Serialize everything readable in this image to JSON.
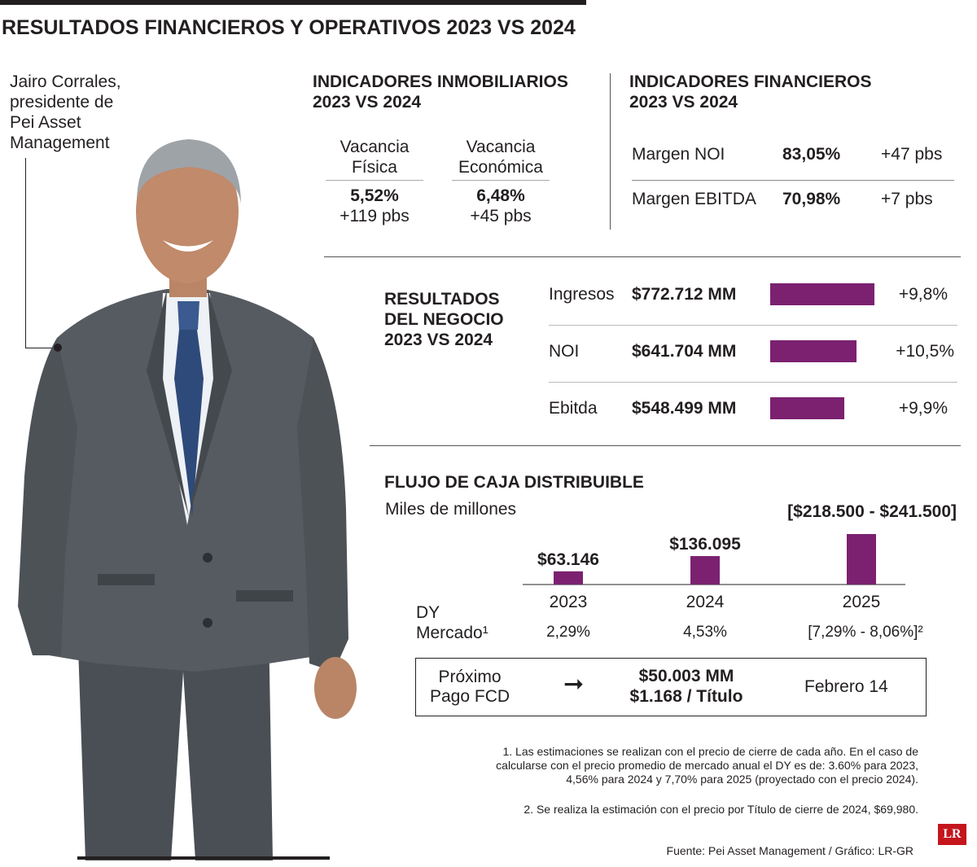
{
  "title": "RESULTADOS FINANCIEROS Y OPERATIVOS 2023 VS 2024",
  "photo": {
    "caption": [
      "Jairo Corrales,",
      "presidente de",
      "Pei Asset",
      "Management"
    ]
  },
  "real_estate": {
    "heading": [
      "INDICADORES INMOBILIARIOS",
      "2023 VS 2024"
    ],
    "items": [
      {
        "label": [
          "Vacancia",
          "Física"
        ],
        "value": "5,52%",
        "change": "+119 pbs"
      },
      {
        "label": [
          "Vacancia",
          "Económica"
        ],
        "value": "6,48%",
        "change": "+45 pbs"
      }
    ]
  },
  "financial": {
    "heading": [
      "INDICADORES FINANCIEROS",
      "2023 VS 2024"
    ],
    "rows": [
      {
        "label": "Margen NOI",
        "value": "83,05%",
        "change": "+47 pbs"
      },
      {
        "label": "Margen EBITDA",
        "value": "70,98%",
        "change": "+7 pbs"
      }
    ]
  },
  "business": {
    "heading": [
      "RESULTADOS",
      "DEL NEGOCIO",
      "2023 VS 2024"
    ],
    "rows": [
      {
        "label": "Ingresos",
        "value": "$772.712 MM",
        "amount": 772712,
        "change": "+9,8%"
      },
      {
        "label": "NOI",
        "value": "$641.704 MM",
        "amount": 641704,
        "change": "+10,5%"
      },
      {
        "label": "Ebitda",
        "value": "$548.499 MM",
        "amount": 548499,
        "change": "+9,9%"
      }
    ]
  },
  "cash_flow": {
    "heading": "FLUJO DE CAJA DISTRIBUIBLE",
    "subheading": "Miles de millones",
    "dy_label": [
      "DY",
      "Mercado¹"
    ]
  },
  "chart_data": {
    "type": "bar",
    "categories": [
      "2023",
      "2024",
      "2025"
    ],
    "values": [
      63146,
      136095,
      241500
    ],
    "value_labels": [
      "$63.146",
      "$136.095",
      "[$218.500 - $241.500]"
    ],
    "dy_values": [
      "2,29%",
      "4,53%",
      "[7,29% - 8,06%]²"
    ],
    "title": "FLUJO DE CAJA DISTRIBUIBLE",
    "ylabel": "Miles de millones",
    "bar_color": "#7b2170"
  },
  "next_payment": {
    "label": [
      "Próximo",
      "Pago FCD"
    ],
    "arrow": "➞",
    "amounts": [
      "$50.003 MM",
      "$1.168 / Título"
    ],
    "date": "Febrero 14"
  },
  "notes": {
    "note1": [
      "1. Las estimaciones se realizan con el precio de cierre de cada año. En el caso de",
      "calcularse con el precio promedio de mercado anual el DY es de: 3.60% para 2023,",
      "4,56% para 2024 y 7,70% para 2025 (proyectado con el precio 2024)."
    ],
    "note2": "2. Se realiza la estimación con el precio por Título de cierre de 2024, $69,980.",
    "source": "Fuente: Pei Asset Management / Gráfico: LR-GR"
  },
  "logo": "LR",
  "colors": {
    "accent": "#7b2170",
    "text": "#231f20",
    "logo_red": "#c4161c",
    "suit": "#4d5257",
    "tie": "#2e4a7a"
  }
}
